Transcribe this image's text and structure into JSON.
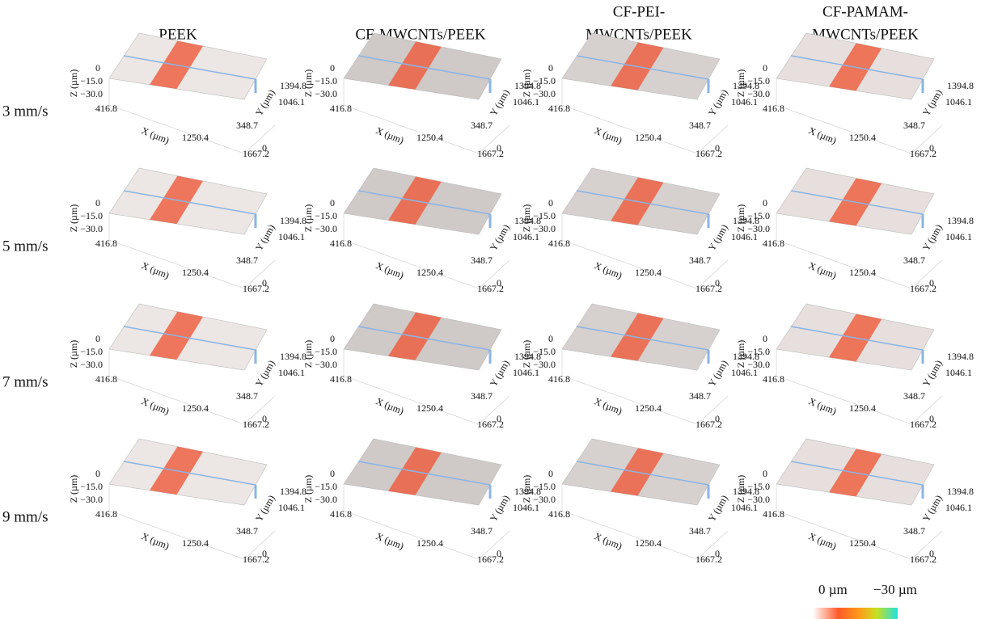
{
  "columns": [
    [
      "PEEK"
    ],
    [
      "CF-MWCNTs/PEEK"
    ],
    [
      "CF-PEI-",
      "MWCNTs/PEEK"
    ],
    [
      "CF-PAMAM-",
      "MWCNTs/PEEK"
    ]
  ],
  "rows": [
    "3 mm/s",
    "5 mm/s",
    "7 mm/s",
    "9 mm/s"
  ],
  "panel_axes": {
    "z_label": "Z (µm)",
    "z_ticks": [
      "0",
      "−15.0",
      "−30.0"
    ],
    "x_label": "X (µm)",
    "x_ticks": [
      "416.8",
      "1250.4",
      "1667.2"
    ],
    "y_label": "Y (µm)",
    "y_ticks": [
      "0",
      "348.7",
      "1046.1",
      "1394.8"
    ]
  },
  "colorbar": {
    "min_label": "0 µm",
    "max_label": "−30 µm"
  }
}
